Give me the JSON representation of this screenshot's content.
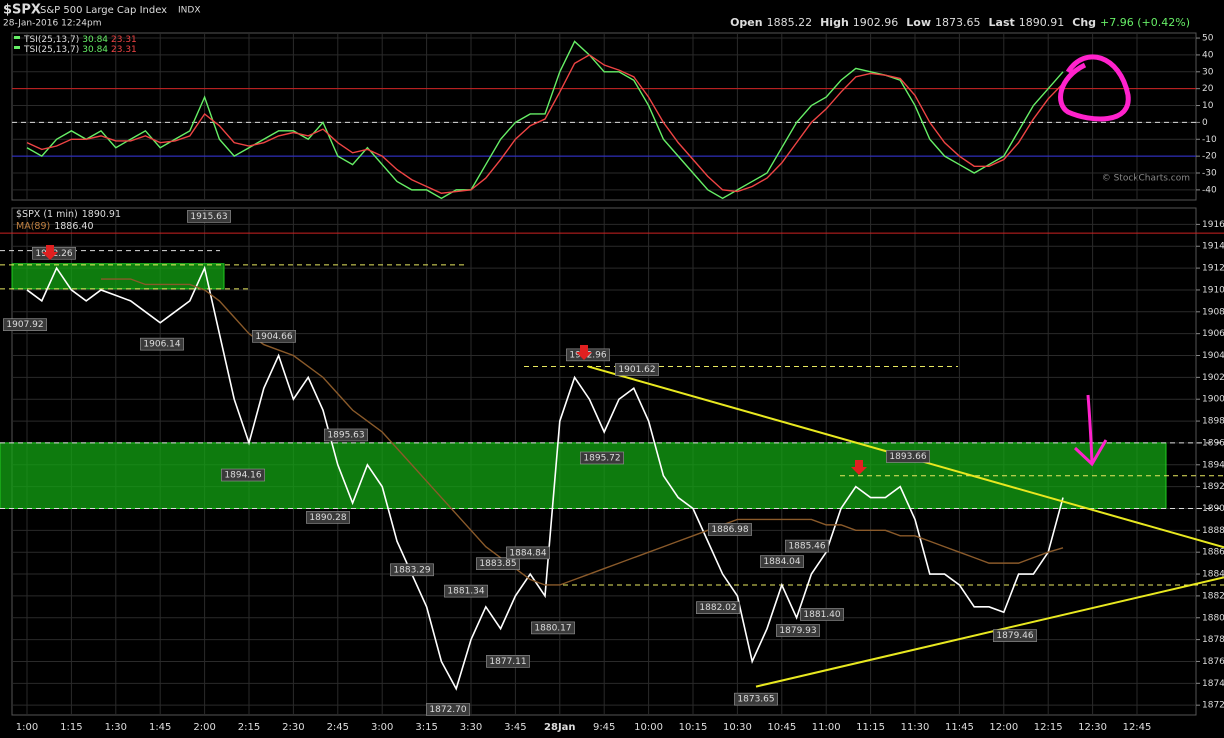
{
  "header": {
    "symbol": "$SPX",
    "name": "S&P 500 Large Cap Index",
    "exchange": "INDX",
    "date": "28-Jan-2016 12:24pm",
    "copyright": "© StockCharts.com",
    "quote": [
      {
        "key": "Open",
        "value": "1885.22"
      },
      {
        "key": "High",
        "value": "1902.96"
      },
      {
        "key": "Low",
        "value": "1873.65"
      },
      {
        "key": "Last",
        "value": "1890.91"
      },
      {
        "key": "Chg",
        "value": "+7.96 (+0.42%)"
      }
    ]
  },
  "chart_data": [
    {
      "type": "line",
      "ylim": [
        -46,
        53
      ],
      "yticks": [
        -40,
        -30,
        -20,
        -10,
        0,
        10,
        20,
        30,
        40,
        50
      ],
      "grid": true,
      "legend": [
        {
          "name": "TSI(25,13,7)",
          "values": [
            "30.84",
            "23.31"
          ]
        },
        {
          "name": "TSI(25,13,7)",
          "values": [
            "30.84",
            "23.31"
          ]
        }
      ],
      "hlines": [
        {
          "value": 20,
          "color": "#cc2222",
          "dash": false
        },
        {
          "value": -20,
          "color": "#3333dd",
          "dash": false
        },
        {
          "value": 0,
          "color": "#dddddd",
          "dash": true
        }
      ],
      "series": [
        {
          "color": "#66ee66",
          "values": [
            -15,
            -20,
            -10,
            -5,
            -10,
            -5,
            -15,
            -10,
            -5,
            -15,
            -10,
            -5,
            15,
            -10,
            -20,
            -15,
            -10,
            -5,
            -5,
            -10,
            0,
            -20,
            -25,
            -15,
            -25,
            -35,
            -40,
            -40,
            -45,
            -40,
            -40,
            -25,
            -10,
            0,
            5,
            5,
            30,
            48,
            40,
            30,
            30,
            25,
            10,
            -10,
            -20,
            -30,
            -40,
            -45,
            -40,
            -35,
            -30,
            -15,
            0,
            10,
            15,
            25,
            32,
            30,
            28,
            25,
            10,
            -10,
            -20,
            -25,
            -30,
            -25,
            -20,
            -5,
            10,
            20,
            30,
            null,
            null,
            null,
            null,
            null
          ]
        },
        {
          "color": "#ee4444",
          "values": [
            -12,
            -16,
            -14,
            -10,
            -10,
            -8,
            -11,
            -11,
            -8,
            -12,
            -11,
            -8,
            5,
            -2,
            -12,
            -14,
            -12,
            -8,
            -6,
            -8,
            -4,
            -12,
            -18,
            -16,
            -20,
            -28,
            -34,
            -38,
            -42,
            -41,
            -40,
            -33,
            -22,
            -10,
            -2,
            2,
            18,
            35,
            40,
            34,
            31,
            27,
            15,
            0,
            -12,
            -22,
            -32,
            -40,
            -41,
            -38,
            -33,
            -24,
            -12,
            0,
            8,
            18,
            27,
            29,
            28,
            26,
            16,
            0,
            -12,
            -20,
            -26,
            -26,
            -22,
            -12,
            2,
            14,
            23,
            null,
            null,
            null,
            null,
            null
          ]
        }
      ]
    },
    {
      "type": "line",
      "ylim": [
        1871.1,
        1917.5
      ],
      "yticks": [
        1872,
        1874,
        1876,
        1878,
        1880,
        1882,
        1884,
        1886,
        1888,
        1890,
        1892,
        1894,
        1896,
        1898,
        1900,
        1902,
        1904,
        1906,
        1908,
        1910,
        1912,
        1914,
        1916
      ],
      "grid": true,
      "categories": [
        "1:00",
        null,
        null,
        "1:15",
        null,
        null,
        "1:30",
        null,
        null,
        "1:45",
        null,
        null,
        "2:00",
        null,
        null,
        "2:15",
        null,
        null,
        "2:30",
        null,
        null,
        "2:45",
        null,
        null,
        "3:00",
        null,
        null,
        "3:15",
        null,
        null,
        "3:30",
        null,
        null,
        "3:45",
        null,
        null,
        "28Jan",
        null,
        null,
        "9:45",
        null,
        null,
        "10:00",
        null,
        null,
        "10:15",
        null,
        null,
        "10:30",
        null,
        null,
        "10:45",
        null,
        null,
        "11:00",
        null,
        null,
        "11:15",
        null,
        null,
        "11:30",
        null,
        null,
        "11:45",
        null,
        null,
        "12:00",
        null,
        null,
        "12:15",
        null,
        null,
        "12:30",
        null,
        null,
        "12:45"
      ],
      "series": [
        {
          "name": "$SPX (1 min)",
          "last": "1890.91",
          "color": "#ffffff",
          "values": [
            1910,
            1909,
            1912,
            1910,
            1909,
            1910,
            1909.5,
            1909,
            1908,
            1907,
            1908,
            1909,
            1912,
            1906,
            1900,
            1896,
            1901,
            1904,
            1900,
            1902,
            1899,
            1894,
            1890.5,
            1894,
            1892,
            1887,
            1884,
            1881,
            1876,
            1873.5,
            1878,
            1881,
            1879,
            1882,
            1884,
            1882,
            1898,
            1902,
            1900,
            1897,
            1900,
            1901,
            1898,
            1893,
            1891,
            1890,
            1887,
            1884,
            1882,
            1876,
            1879,
            1883,
            1880,
            1884,
            1886,
            1890,
            1892,
            1891,
            1891,
            1892,
            1889,
            1884,
            1884,
            1883,
            1881,
            1881,
            1880.5,
            1884,
            1884,
            1886,
            1891,
            null,
            null,
            null,
            null,
            null
          ]
        },
        {
          "name": "MA(89)",
          "last": "1886.40",
          "color": "#8a5a2a",
          "values": [
            null,
            null,
            null,
            null,
            null,
            1911,
            1911,
            1911,
            1910.5,
            1910.5,
            1910.5,
            1910.5,
            1910,
            1909,
            1907.5,
            1906,
            1905,
            1904.5,
            1904,
            1903,
            1902,
            1900.5,
            1899,
            1898,
            1897,
            1895.5,
            1894,
            1892.5,
            1891,
            1889.5,
            1888,
            1886.5,
            1885.5,
            1884.5,
            1883.5,
            1883,
            1883,
            1883.5,
            1884,
            1884.5,
            1885,
            1885.5,
            1886,
            1886.5,
            1887,
            1887.5,
            1888,
            1888.5,
            1889,
            1889,
            1889,
            1889,
            1889,
            1889,
            1888.5,
            1888.5,
            1888,
            1888,
            1888,
            1887.5,
            1887.5,
            1887,
            1886.5,
            1886,
            1885.5,
            1885,
            1885,
            1885,
            1885.5,
            1886,
            1886.4,
            null,
            null,
            null,
            null,
            null
          ]
        }
      ],
      "bands": [
        {
          "range": [
            1890,
            1896
          ],
          "color": "rgba(20,170,20,0.72)"
        },
        {
          "range": [
            1910.1,
            1912.4
          ],
          "color": "rgba(20,170,20,0.72)"
        }
      ],
      "hlines": [
        {
          "value": 1915.2,
          "color": "#cc2222",
          "dash": false
        },
        {
          "value": 1913.6,
          "color": "#dddddd",
          "dash": true
        },
        {
          "value": 1912.3,
          "color": "#e8e860",
          "dash": true
        },
        {
          "value": 1910.1,
          "color": "#e8e860",
          "dash": true
        },
        {
          "value": 1903,
          "color": "#e8e860",
          "dash": true
        },
        {
          "value": 1896,
          "color": "#dddddd",
          "dash": true
        },
        {
          "value": 1893,
          "color": "#e8e860",
          "dash": true
        },
        {
          "value": 1890,
          "color": "#dddddd",
          "dash": true
        },
        {
          "value": 1883,
          "color": "#e8e860",
          "dash": true
        }
      ],
      "trendlines": [
        {
          "from": 1903,
          "to": 1886.45,
          "color": "#e8e820"
        },
        {
          "from": 1873.7,
          "to": 1883.7,
          "color": "#e8e820"
        }
      ],
      "annotations": [
        {
          "value": 1907.92,
          "label": "1907.92"
        },
        {
          "value": 1912.26,
          "label": "1912.26"
        },
        {
          "value": 1906.14,
          "label": "1906.14"
        },
        {
          "value": 1915.63,
          "label": "1915.63"
        },
        {
          "value": 1904.66,
          "label": "1904.66"
        },
        {
          "value": 1894.16,
          "label": "1894.16"
        },
        {
          "value": 1895.63,
          "label": "1895.63"
        },
        {
          "value": 1890.28,
          "label": "1890.28"
        },
        {
          "value": 1883.29,
          "label": "1883.29"
        },
        {
          "value": 1872.7,
          "label": "1872.70"
        },
        {
          "value": 1881.34,
          "label": "1881.34"
        },
        {
          "value": 1883.85,
          "label": "1883.85"
        },
        {
          "value": 1884.84,
          "label": "1884.84"
        },
        {
          "value": 1877.11,
          "label": "1877.11"
        },
        {
          "value": 1880.17,
          "label": "1880.17"
        },
        {
          "value": 1902.96,
          "label": "1902.96"
        },
        {
          "value": 1901.62,
          "label": "1901.62"
        },
        {
          "value": 1895.72,
          "label": "1895.72"
        },
        {
          "value": 1886.98,
          "label": "1886.98"
        },
        {
          "value": 1882.02,
          "label": "1882.02"
        },
        {
          "value": 1873.65,
          "label": "1873.65"
        },
        {
          "value": 1884.04,
          "label": "1884.04"
        },
        {
          "value": 1885.46,
          "label": "1885.46"
        },
        {
          "value": 1879.93,
          "label": "1879.93"
        },
        {
          "value": 1881.4,
          "label": "1881.40"
        },
        {
          "value": 1893.66,
          "label": "1893.66"
        },
        {
          "value": 1879.46,
          "label": "1879.46"
        }
      ]
    }
  ]
}
